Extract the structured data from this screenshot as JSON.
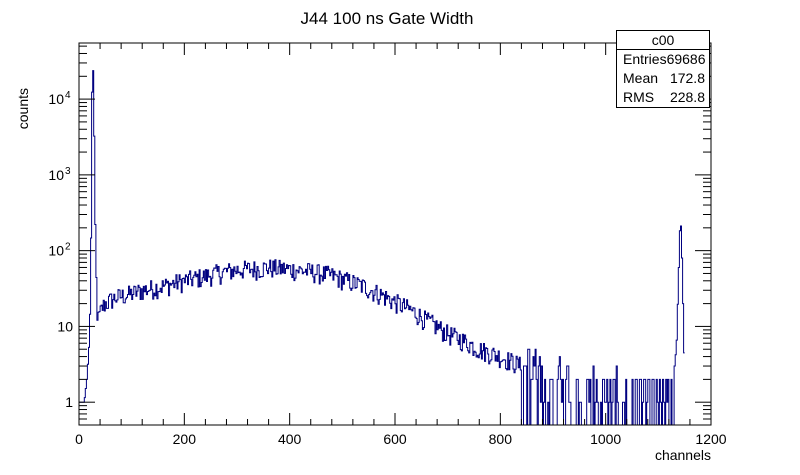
{
  "chart_data": {
    "type": "histogram",
    "title": "J44 100 ns Gate Width",
    "xlabel": "channels",
    "ylabel": "counts",
    "xlim": [
      0,
      1200
    ],
    "ylim": [
      0.5,
      55000
    ],
    "yscale": "log",
    "x_ticks": [
      "0",
      "200",
      "400",
      "600",
      "800",
      "1000",
      "1200"
    ],
    "y_ticks": [
      {
        "value": 1,
        "label": "1"
      },
      {
        "value": 10,
        "label": "10"
      },
      {
        "value": 100,
        "label": "10",
        "exp": "2"
      },
      {
        "value": 1000,
        "label": "10",
        "exp": "3"
      },
      {
        "value": 10000,
        "label": "10",
        "exp": "4"
      }
    ],
    "line_color": "#000080",
    "grid": false,
    "stats": {
      "name": "c00",
      "rows": [
        {
          "label": "Entries",
          "value": "69686"
        },
        {
          "label": "Mean",
          "value": "172.8"
        },
        {
          "label": "RMS",
          "value": "228.8"
        }
      ]
    },
    "series": [
      {
        "x": [
          0,
          10,
          15,
          18,
          20,
          22,
          24,
          25,
          26,
          27,
          28,
          29,
          30,
          31,
          32,
          33,
          34,
          35,
          36,
          38,
          40,
          45,
          50,
          60,
          70,
          80,
          90,
          100,
          120,
          140,
          160,
          180,
          200,
          220,
          240,
          260,
          280,
          300,
          320,
          340,
          360,
          380,
          400,
          420,
          440,
          460,
          480,
          500,
          520,
          540,
          560,
          580,
          600,
          620,
          640,
          660,
          680,
          700,
          720,
          740,
          760,
          780,
          800,
          820,
          840,
          860,
          880,
          900,
          920,
          940,
          960,
          980,
          1000,
          1020,
          1040,
          1060,
          1080,
          1100,
          1120,
          1130,
          1135,
          1138,
          1140,
          1142,
          1144,
          1146,
          1148,
          1150
        ],
        "y": [
          1,
          1,
          2,
          4,
          7,
          30,
          600,
          14000,
          29000,
          22000,
          9000,
          2500,
          700,
          200,
          80,
          40,
          22,
          15,
          12,
          13,
          15,
          18,
          20,
          22,
          24,
          25,
          26,
          27,
          30,
          32,
          34,
          37,
          40,
          43,
          46,
          50,
          53,
          56,
          57,
          58,
          60,
          58,
          57,
          55,
          53,
          50,
          47,
          42,
          38,
          34,
          29,
          25,
          21,
          18,
          15,
          12,
          10,
          8,
          7,
          6,
          5,
          4.5,
          4,
          3.5,
          3,
          2.5,
          2.2,
          2,
          2,
          1.8,
          1.6,
          1.5,
          1.4,
          1.3,
          1.2,
          1.2,
          1.2,
          1.2,
          1.2,
          2,
          8,
          30,
          120,
          280,
          160,
          40,
          10,
          2
        ]
      }
    ]
  }
}
